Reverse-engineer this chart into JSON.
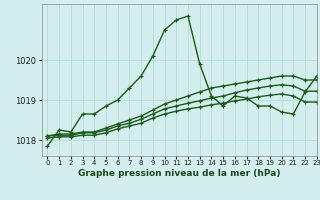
{
  "title": "Graphe pression niveau de la mer (hPa)",
  "background_color": "#d4eeee",
  "line_color": "#1a5c1a",
  "grid_color": "#b0d8d8",
  "xlim": [
    -0.5,
    23
  ],
  "ylim": [
    1017.6,
    1021.4
  ],
  "yticks": [
    1018,
    1019,
    1020
  ],
  "xticks": [
    0,
    1,
    2,
    3,
    4,
    5,
    6,
    7,
    8,
    9,
    10,
    11,
    12,
    13,
    14,
    15,
    16,
    17,
    18,
    19,
    20,
    21,
    22,
    23
  ],
  "series": [
    [
      1017.85,
      1018.25,
      1018.2,
      1018.65,
      1018.65,
      1018.85,
      1019.0,
      1019.3,
      1019.6,
      1020.1,
      1020.75,
      1021.0,
      1021.1,
      1019.9,
      1019.1,
      1018.85,
      1019.1,
      1019.05,
      1018.85,
      1018.85,
      1018.7,
      1018.65,
      1019.2,
      1019.6
    ],
    [
      1018.1,
      1018.15,
      1018.15,
      1018.2,
      1018.2,
      1018.3,
      1018.4,
      1018.5,
      1018.6,
      1018.75,
      1018.9,
      1019.0,
      1019.1,
      1019.2,
      1019.3,
      1019.35,
      1019.4,
      1019.45,
      1019.5,
      1019.55,
      1019.6,
      1019.6,
      1019.5,
      1019.5
    ],
    [
      1018.1,
      1018.12,
      1018.12,
      1018.18,
      1018.18,
      1018.25,
      1018.35,
      1018.42,
      1018.52,
      1018.65,
      1018.78,
      1018.85,
      1018.92,
      1018.98,
      1019.05,
      1019.1,
      1019.18,
      1019.25,
      1019.3,
      1019.35,
      1019.38,
      1019.35,
      1019.22,
      1019.22
    ],
    [
      1018.05,
      1018.08,
      1018.08,
      1018.12,
      1018.12,
      1018.18,
      1018.28,
      1018.35,
      1018.42,
      1018.55,
      1018.65,
      1018.72,
      1018.78,
      1018.82,
      1018.88,
      1018.92,
      1018.98,
      1019.02,
      1019.08,
      1019.12,
      1019.15,
      1019.1,
      1018.95,
      1018.95
    ]
  ]
}
